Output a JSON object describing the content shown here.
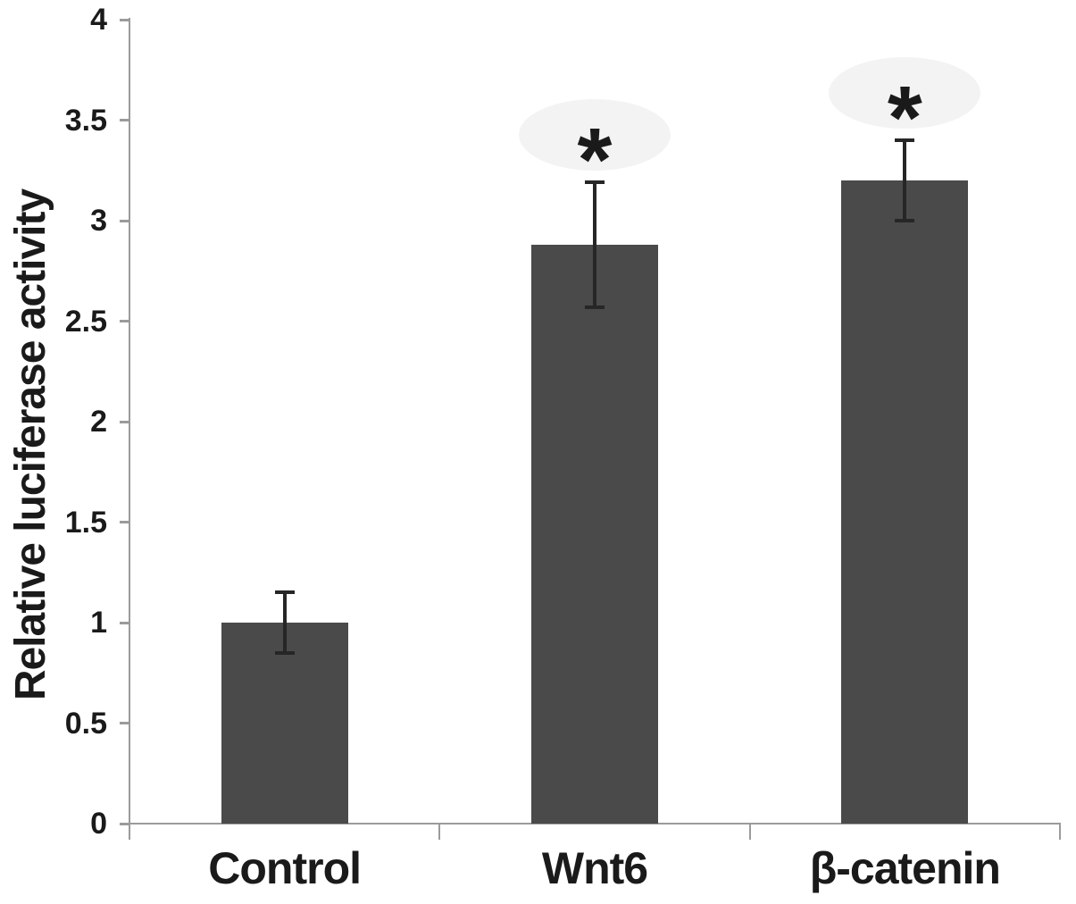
{
  "chart_data": {
    "type": "bar",
    "title": "",
    "xlabel": "",
    "ylabel": "Relative luciferase activity",
    "categories": [
      "Control",
      "Wnt6",
      "β-catenin"
    ],
    "values": [
      1.0,
      2.88,
      3.2
    ],
    "errors": [
      0.15,
      0.31,
      0.2
    ],
    "significance": [
      "",
      "*",
      "*"
    ],
    "ylim": [
      0,
      4
    ],
    "yticks": [
      0,
      0.5,
      1,
      1.5,
      2,
      2.5,
      3,
      3.5,
      4
    ],
    "ytick_labels": [
      "0",
      "0.5",
      "1",
      "1.5",
      "2",
      "2.5",
      "3",
      "3.5",
      "4"
    ],
    "grid": false,
    "legend": null,
    "colors": {
      "bar": "#4a4a4a",
      "axis": "#9b9b9b",
      "error_bar": "#262626",
      "text": "#1a1a1a"
    }
  }
}
